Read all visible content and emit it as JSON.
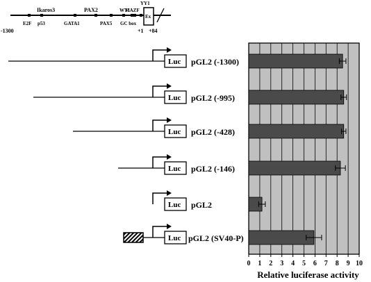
{
  "promoter_map": {
    "sites_top": [
      {
        "name": "Ikaros3"
      },
      {
        "name": "PAX2"
      },
      {
        "name": "WT1"
      },
      {
        "name": "MAZF"
      },
      {
        "name": "YY1"
      }
    ],
    "sites_bottom": [
      {
        "name": "E2F"
      },
      {
        "name": "p53"
      },
      {
        "name": "GATA1"
      },
      {
        "name": "PAX5"
      },
      {
        "name": "GC box"
      }
    ],
    "positions": {
      "left": "-1300",
      "tss": "+1",
      "right": "+84"
    },
    "exon_label": "Ex"
  },
  "constructs": [
    {
      "name": "pGL2 (-1300)",
      "reporter": "Luc",
      "insert": "promoter",
      "value": 8.5,
      "error": 0.3
    },
    {
      "name": "pGL2 (-995)",
      "reporter": "Luc",
      "insert": "promoter",
      "value": 8.6,
      "error": 0.25
    },
    {
      "name": "pGL2 (-428)",
      "reporter": "Luc",
      "insert": "promoter",
      "value": 8.6,
      "error": 0.2
    },
    {
      "name": "pGL2 (-146)",
      "reporter": "Luc",
      "insert": "promoter",
      "value": 8.3,
      "error": 0.45
    },
    {
      "name": "pGL2",
      "reporter": "Luc",
      "insert": "none",
      "value": 1.2,
      "error": 0.3
    },
    {
      "name": "pGL2 (SV40-P)",
      "reporter": "Luc",
      "insert": "SV40",
      "value": 5.9,
      "error": 0.7
    }
  ],
  "chart_data": {
    "type": "bar",
    "orientation": "horizontal",
    "categories": [
      "pGL2 (-1300)",
      "pGL2 (-995)",
      "pGL2 (-428)",
      "pGL2 (-146)",
      "pGL2",
      "pGL2 (SV40-P)"
    ],
    "values": [
      8.5,
      8.6,
      8.6,
      8.3,
      1.2,
      5.9
    ],
    "errors": [
      0.3,
      0.25,
      0.2,
      0.45,
      0.3,
      0.7
    ],
    "xlabel": "Relative luciferase activity",
    "xlim": [
      0,
      10
    ],
    "xticks": [
      0,
      1,
      2,
      3,
      4,
      5,
      6,
      7,
      8,
      9,
      10
    ],
    "grid": true,
    "colors": {
      "bar": "#4a4a4a",
      "background": "#c0c0c0",
      "grid": "#000000"
    }
  }
}
